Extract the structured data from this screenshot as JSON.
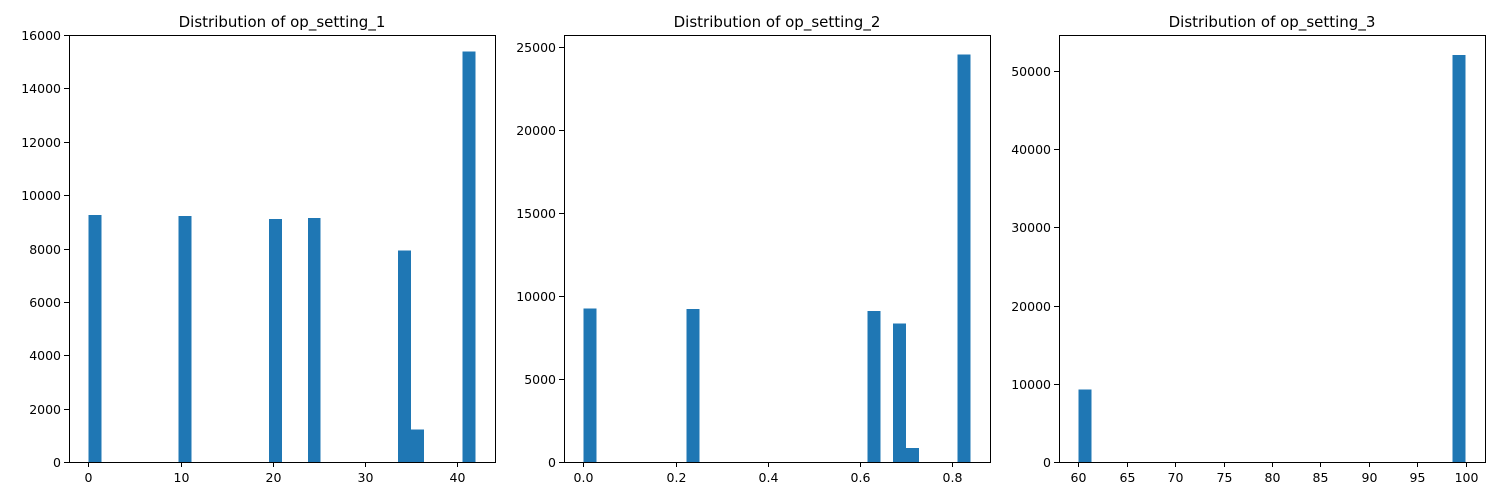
{
  "chart_data": [
    {
      "type": "bar",
      "title": "Distribution of op_setting_1",
      "xlabel": "",
      "ylabel": "",
      "xlim": [
        -2.1,
        44.1
      ],
      "ylim": [
        0,
        16000
      ],
      "xticks": [
        0,
        10,
        20,
        30,
        40
      ],
      "xtick_labels": [
        "0",
        "10",
        "20",
        "30",
        "40"
      ],
      "yticks": [
        0,
        2000,
        4000,
        6000,
        8000,
        10000,
        12000,
        14000,
        16000
      ],
      "ytick_labels": [
        "0",
        "2000",
        "4000",
        "6000",
        "8000",
        "10000",
        "12000",
        "14000",
        "16000"
      ],
      "bin_width": 1.4,
      "bins": [
        {
          "x": 0.0,
          "value": 9250
        },
        {
          "x": 9.8,
          "value": 9220
        },
        {
          "x": 19.6,
          "value": 9100
        },
        {
          "x": 23.8,
          "value": 9150
        },
        {
          "x": 33.6,
          "value": 7920
        },
        {
          "x": 35.0,
          "value": 1220
        },
        {
          "x": 40.6,
          "value": 15380
        }
      ],
      "grid": false,
      "color": "#1f77b4"
    },
    {
      "type": "bar",
      "title": "Distribution of op_setting_2",
      "xlabel": "",
      "ylabel": "",
      "xlim": [
        -0.042,
        0.882
      ],
      "ylim": [
        0,
        25700
      ],
      "xticks": [
        0.0,
        0.2,
        0.4,
        0.6,
        0.8
      ],
      "xtick_labels": [
        "0.0",
        "0.2",
        "0.4",
        "0.6",
        "0.8"
      ],
      "yticks": [
        0,
        5000,
        10000,
        15000,
        20000,
        25000
      ],
      "ytick_labels": [
        "0",
        "5000",
        "10000",
        "15000",
        "20000",
        "25000"
      ],
      "bin_width": 0.028,
      "bins": [
        {
          "x": 0.0,
          "value": 9230
        },
        {
          "x": 0.224,
          "value": 9220
        },
        {
          "x": 0.616,
          "value": 9100
        },
        {
          "x": 0.672,
          "value": 8330
        },
        {
          "x": 0.7,
          "value": 830
        },
        {
          "x": 0.812,
          "value": 24540
        }
      ],
      "grid": false,
      "color": "#1f77b4"
    },
    {
      "type": "bar",
      "title": "Distribution of op_setting_3",
      "xlabel": "",
      "ylabel": "",
      "xlim": [
        58.0,
        102.0
      ],
      "ylim": [
        0,
        54600
      ],
      "xticks": [
        60,
        65,
        70,
        75,
        80,
        85,
        90,
        95,
        100
      ],
      "xtick_labels": [
        "60",
        "65",
        "70",
        "75",
        "80",
        "85",
        "90",
        "95",
        "100"
      ],
      "yticks": [
        0,
        10000,
        20000,
        30000,
        40000,
        50000
      ],
      "ytick_labels": [
        "0",
        "10000",
        "20000",
        "30000",
        "40000",
        "50000"
      ],
      "bin_width": 1.3333,
      "bins": [
        {
          "x": 60.0,
          "value": 9250
        },
        {
          "x": 98.6667,
          "value": 52050
        }
      ],
      "grid": false,
      "color": "#1f77b4"
    }
  ]
}
